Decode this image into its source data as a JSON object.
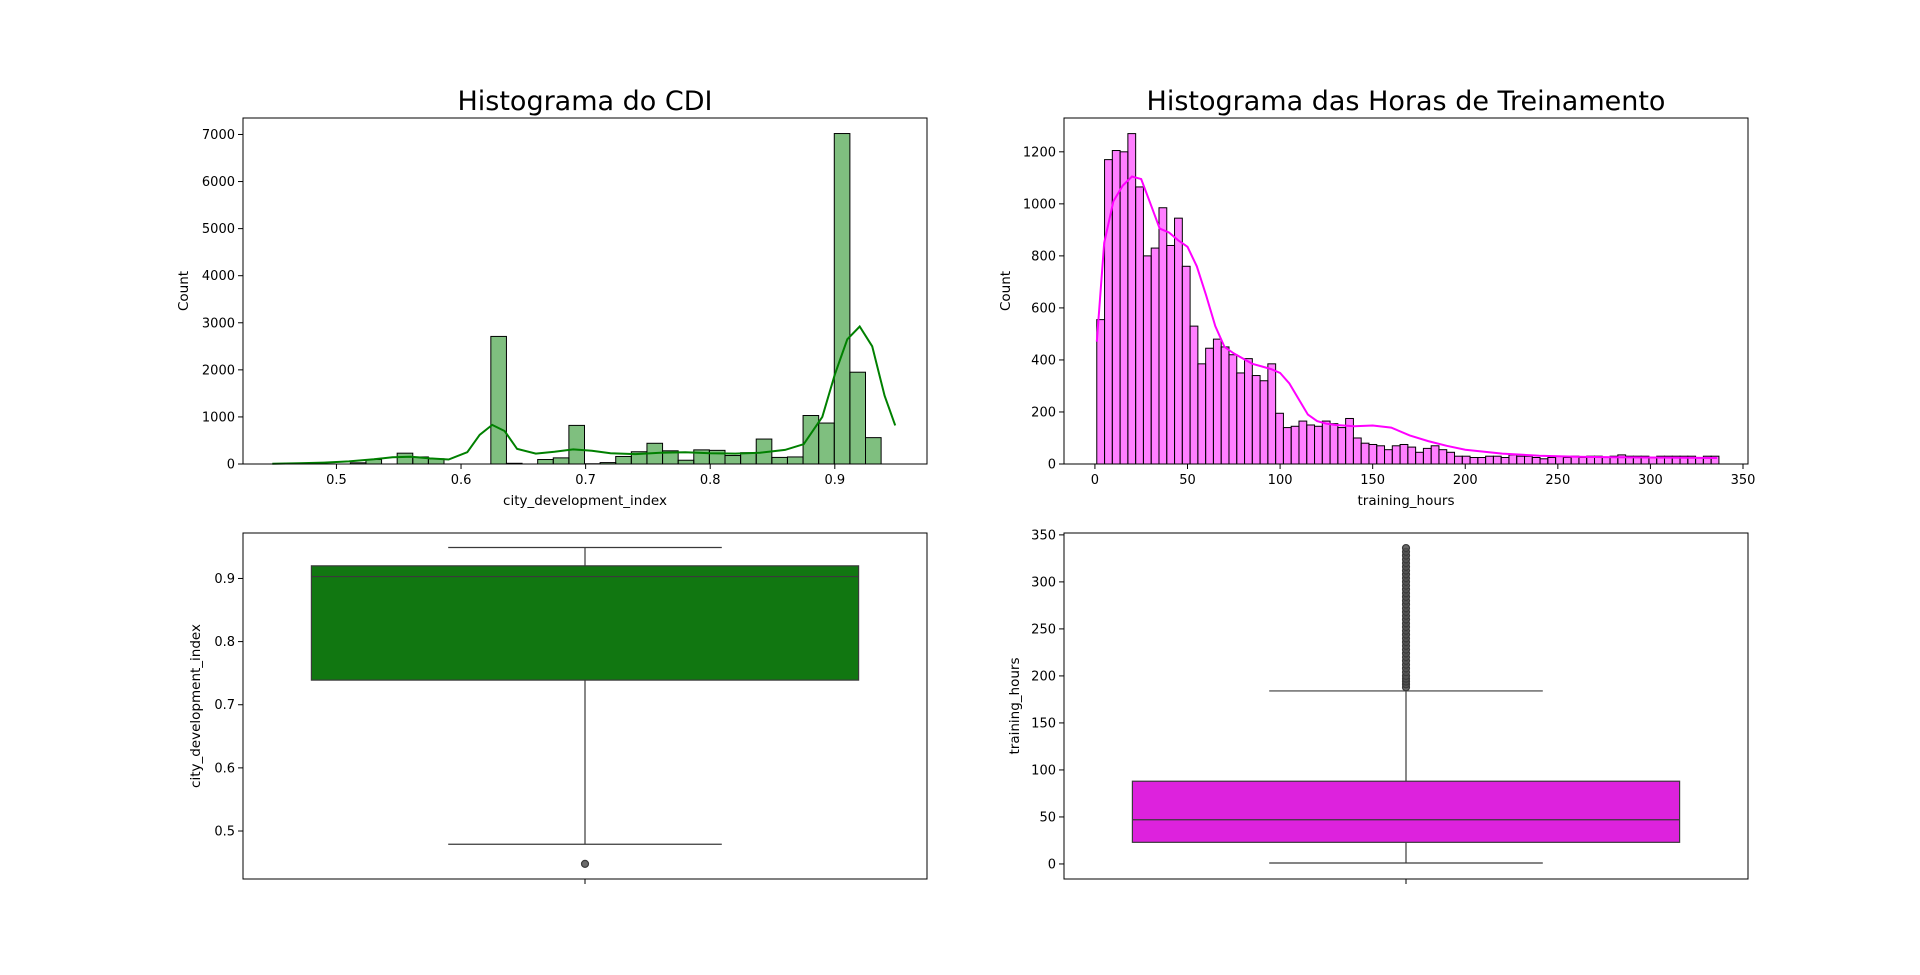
{
  "chart_data": [
    {
      "type": "bar",
      "subtype": "histogram",
      "title": "Histograma do CDI",
      "xlabel": "city_development_index",
      "ylabel": "Count",
      "xlim": [
        0.425,
        0.974
      ],
      "ylim": [
        0,
        7350
      ],
      "xticks": [
        0.5,
        0.6,
        0.7,
        0.8,
        0.9
      ],
      "yticks": [
        0,
        1000,
        2000,
        3000,
        4000,
        5000,
        6000,
        7000
      ],
      "grid": false,
      "color": "#008000",
      "bin_start": 0.4485,
      "bin_width": 0.01253,
      "counts": [
        0,
        0,
        5,
        2,
        0,
        25,
        95,
        0,
        230,
        150,
        110,
        0,
        0,
        0,
        2710,
        15,
        0,
        95,
        130,
        820,
        5,
        30,
        160,
        260,
        440,
        280,
        80,
        300,
        290,
        180,
        240,
        530,
        140,
        150,
        1030,
        870,
        7020,
        1950,
        560
      ],
      "kde": {
        "x": [
          0.4485,
          0.47,
          0.49,
          0.51,
          0.53,
          0.545,
          0.56,
          0.575,
          0.59,
          0.605,
          0.615,
          0.625,
          0.635,
          0.645,
          0.66,
          0.675,
          0.69,
          0.705,
          0.72,
          0.74,
          0.76,
          0.78,
          0.8,
          0.82,
          0.84,
          0.86,
          0.875,
          0.89,
          0.9,
          0.91,
          0.92,
          0.93,
          0.94,
          0.9485
        ],
        "y": [
          5,
          15,
          30,
          55,
          100,
          145,
          155,
          120,
          95,
          250,
          620,
          830,
          700,
          320,
          220,
          260,
          310,
          280,
          230,
          210,
          240,
          250,
          230,
          220,
          240,
          300,
          420,
          1000,
          1900,
          2650,
          2920,
          2500,
          1450,
          820
        ]
      }
    },
    {
      "type": "bar",
      "subtype": "histogram",
      "title": "Histograma das Horas de Treinamento",
      "xlabel": "training_hours",
      "ylabel": "Count",
      "xlim": [
        -16.7,
        352.7
      ],
      "ylim": [
        0,
        1330
      ],
      "xticks": [
        0,
        50,
        100,
        150,
        200,
        250,
        300,
        350
      ],
      "yticks": [
        0,
        200,
        400,
        600,
        800,
        1000,
        1200
      ],
      "grid": false,
      "color": "#ff00ff",
      "bin_start": 1,
      "bin_width": 4.2,
      "counts": [
        555,
        1170,
        1205,
        1200,
        1270,
        1065,
        800,
        830,
        985,
        840,
        945,
        760,
        530,
        385,
        445,
        480,
        450,
        420,
        350,
        405,
        340,
        320,
        385,
        195,
        140,
        145,
        165,
        150,
        145,
        165,
        155,
        140,
        175,
        100,
        80,
        75,
        70,
        55,
        70,
        75,
        65,
        45,
        60,
        70,
        55,
        45,
        30,
        30,
        25,
        25,
        30,
        30,
        25,
        35,
        30,
        30,
        25,
        20,
        25,
        30,
        25,
        30,
        25,
        30,
        30,
        25,
        30,
        35,
        30,
        30,
        30,
        25,
        30,
        30,
        30,
        30,
        30,
        25,
        30,
        30
      ],
      "kde": {
        "x": [
          1,
          5,
          10,
          15,
          20,
          25,
          30,
          35,
          40,
          45,
          50,
          55,
          60,
          65,
          70,
          75,
          80,
          85,
          90,
          95,
          100,
          105,
          110,
          115,
          120,
          125,
          130,
          140,
          150,
          160,
          170,
          180,
          190,
          200,
          220,
          240,
          260,
          280,
          300,
          320,
          336
        ],
        "y": [
          470,
          850,
          1010,
          1070,
          1105,
          1095,
          1000,
          905,
          890,
          860,
          835,
          760,
          650,
          530,
          450,
          425,
          405,
          385,
          375,
          365,
          350,
          310,
          250,
          190,
          165,
          155,
          150,
          145,
          148,
          140,
          110,
          88,
          70,
          55,
          40,
          32,
          28,
          26,
          25,
          24,
          23
        ]
      }
    },
    {
      "type": "box",
      "ylabel": "city_development_index",
      "ylim": [
        0.424,
        0.972
      ],
      "yticks": [
        0.5,
        0.6,
        0.7,
        0.8,
        0.9
      ],
      "color": "#117711",
      "whisker_low": 0.479,
      "q1": 0.739,
      "median": 0.903,
      "q3": 0.92,
      "whisker_high": 0.949,
      "outliers": [
        0.448
      ]
    },
    {
      "type": "box",
      "ylabel": "training_hours",
      "ylim": [
        -16,
        352
      ],
      "yticks": [
        0,
        50,
        100,
        150,
        200,
        250,
        300,
        350
      ],
      "color": "#dd22dd",
      "whisker_low": 1,
      "q1": 23,
      "median": 47,
      "q3": 88,
      "whisker_high": 184,
      "outliers": [
        188,
        191,
        194,
        197,
        200,
        204,
        208,
        212,
        216,
        220,
        224,
        228,
        232,
        236,
        240,
        244,
        248,
        252,
        256,
        260,
        264,
        268,
        272,
        276,
        280,
        284,
        288,
        292,
        296,
        300,
        304,
        308,
        312,
        316,
        320,
        324,
        328,
        332,
        336
      ]
    }
  ]
}
